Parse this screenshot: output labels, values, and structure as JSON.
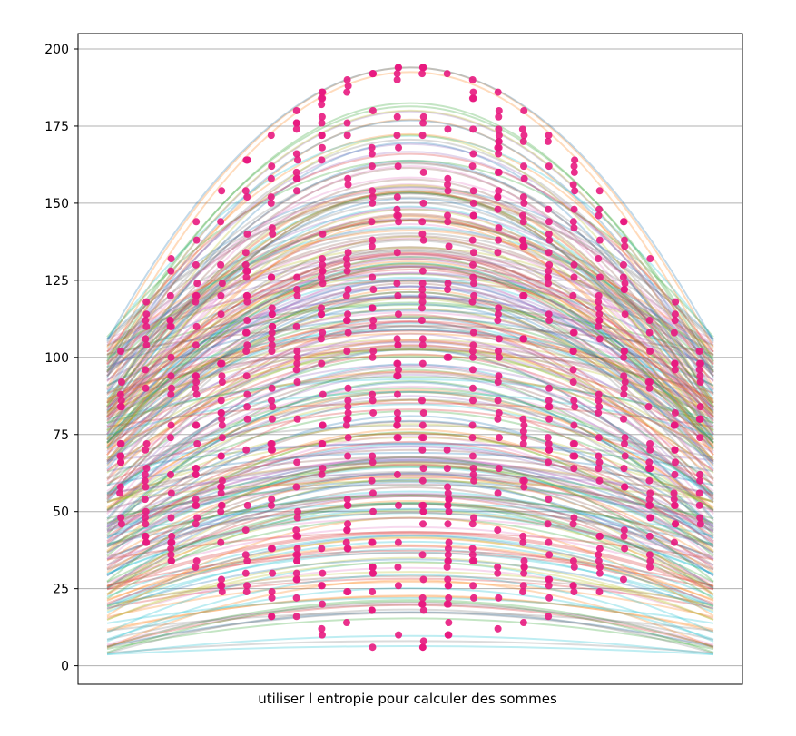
{
  "chart_data": {
    "type": "line",
    "xlabel": "utiliser l entropie pour calculer des sommes",
    "ylabel": "",
    "ylim": [
      -6,
      205
    ],
    "x_ticks_shown": false,
    "y_ticks": [
      0,
      25,
      50,
      75,
      100,
      125,
      150,
      175,
      200
    ],
    "grid": "horizontal",
    "legend": "none",
    "curve_shape": "downward parabola, peak at center x",
    "curve_count": 300,
    "curve_endpoint_range": [
      3,
      107
    ],
    "curve_peak_range": [
      5,
      194
    ],
    "marker_color": "#e8197f",
    "marker_x_positions": 24,
    "marker_y_range": [
      6,
      194
    ],
    "max_marker_value": 194,
    "min_marker_value": 6,
    "palette": [
      "#1f77b4",
      "#ff7f0e",
      "#2ca02c",
      "#d62728",
      "#9467bd",
      "#8c564b",
      "#e377c2",
      "#7f7f7f",
      "#bcbd22",
      "#17becf"
    ]
  }
}
